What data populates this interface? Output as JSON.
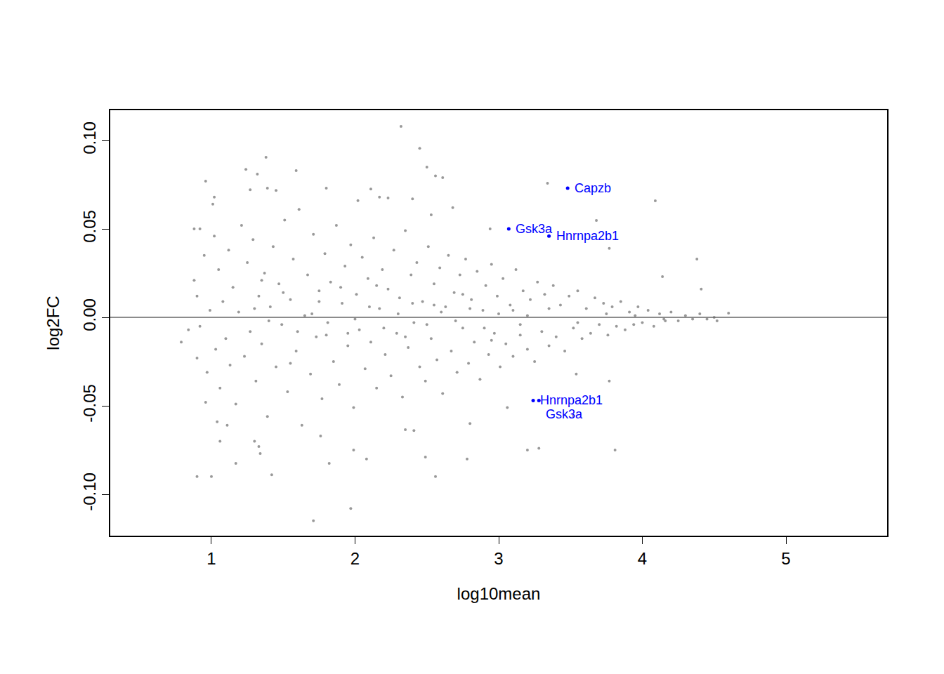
{
  "chart_data": {
    "type": "scatter",
    "x_label": "log10mean",
    "y_label": "log2FC",
    "xlim": [
      0.296,
      5.704
    ],
    "ylim": [
      -0.1234,
      0.1171
    ],
    "xticks": [
      1,
      2,
      3,
      4,
      5
    ],
    "yticks": [
      {
        "value": -0.1,
        "label": "-0.10"
      },
      {
        "value": -0.05,
        "label": "-0.05"
      },
      {
        "value": 0,
        "label": "0.00"
      },
      {
        "value": 0.05,
        "label": "0.05"
      },
      {
        "value": 0.1,
        "label": "0.10"
      }
    ],
    "grid": false,
    "reference_line": {
      "y": 0,
      "color": "#666666"
    },
    "series": [
      {
        "color": "#999999",
        "marker": "circle",
        "points": [
          [
            2.32,
            0.108
          ],
          [
            2.45,
            0.0956
          ],
          [
            1.38,
            0.0905
          ],
          [
            1.24,
            0.0837
          ],
          [
            1.32,
            0.081
          ],
          [
            1.59,
            0.083
          ],
          [
            0.96,
            0.077
          ],
          [
            3.34,
            0.0758
          ],
          [
            4.09,
            0.0659
          ],
          [
            2.5,
            0.085
          ],
          [
            2.56,
            0.08
          ],
          [
            2.61,
            0.079
          ],
          [
            1.27,
            0.0722
          ],
          [
            1.39,
            0.073
          ],
          [
            1.45,
            0.0718
          ],
          [
            1.8,
            0.073
          ],
          [
            2.11,
            0.0726
          ],
          [
            2.17,
            0.068
          ],
          [
            2.23,
            0.0675
          ],
          [
            2.4,
            0.067
          ],
          [
            1.02,
            0.068
          ],
          [
            1.01,
            0.064
          ],
          [
            3.68,
            0.0548
          ],
          [
            3.77,
            0.039
          ],
          [
            4.38,
            0.033
          ],
          [
            4.14,
            0.023
          ],
          [
            4.41,
            0.016
          ],
          [
            0.88,
            0.05
          ],
          [
            0.92,
            0.05
          ],
          [
            2.94,
            0.05
          ],
          [
            2.68,
            0.062
          ],
          [
            2.53,
            0.058
          ],
          [
            2.02,
            0.066
          ],
          [
            1.71,
            -0.115
          ],
          [
            1.97,
            -0.108
          ],
          [
            0.9,
            -0.09
          ],
          [
            1.0,
            -0.09
          ],
          [
            2.56,
            -0.09
          ],
          [
            1.42,
            -0.089
          ],
          [
            2.49,
            -0.079
          ],
          [
            2.08,
            -0.08
          ],
          [
            1.99,
            -0.075
          ],
          [
            2.78,
            -0.08
          ],
          [
            3.2,
            -0.075
          ],
          [
            3.28,
            -0.074
          ],
          [
            3.81,
            -0.075
          ],
          [
            1.17,
            -0.0825
          ],
          [
            1.3,
            -0.07
          ],
          [
            1.33,
            -0.073
          ],
          [
            1.34,
            -0.077
          ],
          [
            1.82,
            -0.0825
          ],
          [
            1.76,
            -0.067
          ],
          [
            2.35,
            -0.0635
          ],
          [
            2.41,
            -0.064
          ],
          [
            2.8,
            -0.06
          ],
          [
            3.52,
            -0.0556
          ],
          [
            3.54,
            -0.032
          ],
          [
            3.77,
            -0.036
          ],
          [
            3.06,
            -0.051
          ],
          [
            1.04,
            -0.059
          ],
          [
            1.06,
            -0.07
          ],
          [
            1.11,
            -0.061
          ],
          [
            0.79,
            -0.014
          ],
          [
            0.84,
            -0.007
          ],
          [
            0.9,
            -0.023
          ],
          [
            0.96,
            -0.048
          ],
          [
            4.6,
            0.0024
          ],
          [
            4.52,
            -0.002
          ],
          [
            0.88,
            0.021
          ],
          [
            0.9,
            0.012
          ],
          [
            0.92,
            -0.005
          ],
          [
            0.95,
            0.035
          ],
          [
            0.97,
            -0.031
          ],
          [
            0.99,
            0.004
          ],
          [
            1.02,
            0.046
          ],
          [
            1.03,
            -0.018
          ],
          [
            1.05,
            0.027
          ],
          [
            1.06,
            -0.04
          ],
          [
            1.08,
            0.009
          ],
          [
            1.1,
            -0.012
          ],
          [
            1.12,
            0.038
          ],
          [
            1.13,
            -0.027
          ],
          [
            1.15,
            0.017
          ],
          [
            1.17,
            -0.049
          ],
          [
            1.19,
            0.003
          ],
          [
            1.21,
            0.052
          ],
          [
            1.23,
            -0.022
          ],
          [
            1.25,
            0.031
          ],
          [
            1.27,
            -0.008
          ],
          [
            1.29,
            0.044
          ],
          [
            1.31,
            -0.036
          ],
          [
            1.33,
            0.012
          ],
          [
            1.35,
            -0.015
          ],
          [
            1.37,
            0.025
          ],
          [
            1.39,
            -0.056
          ],
          [
            1.41,
            0.006
          ],
          [
            1.43,
            0.04
          ],
          [
            1.45,
            -0.028
          ],
          [
            1.47,
            0.019
          ],
          [
            1.49,
            -0.004
          ],
          [
            1.51,
            0.055
          ],
          [
            1.53,
            -0.042
          ],
          [
            1.55,
            0.01
          ],
          [
            1.57,
            0.033
          ],
          [
            1.59,
            -0.019
          ],
          [
            1.61,
            0.061
          ],
          [
            1.63,
            -0.061
          ],
          [
            1.65,
            0.001
          ],
          [
            1.67,
            0.024
          ],
          [
            1.69,
            -0.032
          ],
          [
            1.71,
            0.047
          ],
          [
            1.73,
            -0.011
          ],
          [
            1.75,
            0.015
          ],
          [
            1.77,
            -0.046
          ],
          [
            1.79,
            0.036
          ],
          [
            1.81,
            -0.003
          ],
          [
            1.83,
            0.02
          ],
          [
            1.85,
            -0.025
          ],
          [
            1.87,
            0.052
          ],
          [
            1.89,
            -0.038
          ],
          [
            1.91,
            0.008
          ],
          [
            1.93,
            0.029
          ],
          [
            1.95,
            -0.016
          ],
          [
            1.97,
            0.041
          ],
          [
            1.99,
            -0.051
          ],
          [
            2.01,
            0.013
          ],
          [
            2.03,
            -0.007
          ],
          [
            2.05,
            0.034
          ],
          [
            2.07,
            -0.029
          ],
          [
            2.09,
            0.022
          ],
          [
            2.11,
            -0.014
          ],
          [
            2.13,
            0.045
          ],
          [
            2.15,
            -0.04
          ],
          [
            2.17,
            0.005
          ],
          [
            2.19,
            0.027
          ],
          [
            2.21,
            -0.021
          ],
          [
            2.23,
            0.016
          ],
          [
            2.25,
            -0.033
          ],
          [
            2.27,
            0.038
          ],
          [
            2.29,
            -0.009
          ],
          [
            2.31,
            0.011
          ],
          [
            2.33,
            -0.045
          ],
          [
            2.35,
            0.049
          ],
          [
            2.37,
            -0.017
          ],
          [
            2.39,
            0.024
          ],
          [
            2.41,
            -0.003
          ],
          [
            2.43,
            0.031
          ],
          [
            2.45,
            -0.028
          ],
          [
            2.47,
            0.009
          ],
          [
            2.49,
            -0.036
          ],
          [
            2.51,
            0.04
          ],
          [
            2.53,
            -0.012
          ],
          [
            2.55,
            0.019
          ],
          [
            2.57,
            -0.024
          ],
          [
            2.59,
            0.028
          ],
          [
            2.61,
            -0.043
          ],
          [
            2.63,
            0.006
          ],
          [
            2.65,
            0.035
          ],
          [
            2.67,
            -0.019
          ],
          [
            2.69,
            0.014
          ],
          [
            2.71,
            -0.031
          ],
          [
            2.73,
            0.024
          ],
          [
            2.75,
            -0.006
          ],
          [
            2.77,
            0.033
          ],
          [
            2.79,
            -0.026
          ],
          [
            2.81,
            0.01
          ],
          [
            2.83,
            -0.014
          ],
          [
            2.85,
            0.026
          ],
          [
            2.87,
            -0.035
          ],
          [
            2.89,
            0.004
          ],
          [
            2.91,
            0.018
          ],
          [
            2.93,
            -0.021
          ],
          [
            2.95,
            0.03
          ],
          [
            2.97,
            -0.009
          ],
          [
            2.99,
            0.012
          ],
          [
            3.01,
            -0.028
          ],
          [
            3.03,
            0.022
          ],
          [
            3.05,
            -0.015
          ],
          [
            3.08,
            0.007
          ],
          [
            3.1,
            -0.022
          ],
          [
            3.12,
            0.027
          ],
          [
            3.15,
            -0.004
          ],
          [
            3.17,
            0.015
          ],
          [
            3.2,
            -0.018
          ],
          [
            3.22,
            0.01
          ],
          [
            3.25,
            -0.025
          ],
          [
            3.27,
            0.02
          ],
          [
            3.3,
            -0.008
          ],
          [
            3.32,
            0.013
          ],
          [
            3.35,
            -0.016
          ],
          [
            3.38,
            0.018
          ],
          [
            3.4,
            -0.011
          ],
          [
            3.43,
            0.007
          ],
          [
            3.46,
            -0.019
          ],
          [
            3.49,
            0.012
          ],
          [
            3.52,
            -0.006
          ],
          [
            3.55,
            0.015
          ],
          [
            3.58,
            -0.012
          ],
          [
            3.61,
            0.005
          ],
          [
            3.64,
            -0.009
          ],
          [
            3.67,
            0.011
          ],
          [
            3.7,
            -0.004
          ],
          [
            3.73,
            0.008
          ],
          [
            3.76,
            -0.01
          ],
          [
            3.79,
            0.006
          ],
          [
            3.82,
            -0.005
          ],
          [
            3.85,
            0.009
          ],
          [
            3.88,
            -0.007
          ],
          [
            3.91,
            0.003
          ],
          [
            3.94,
            -0.004
          ],
          [
            3.97,
            0.006
          ],
          [
            4.0,
            -0.003
          ],
          [
            4.04,
            0.004
          ],
          [
            4.08,
            -0.005
          ],
          [
            4.12,
            0.002
          ],
          [
            4.16,
            -0.002
          ],
          [
            4.2,
            0.003
          ],
          [
            4.25,
            -0.002
          ],
          [
            4.3,
            0.001
          ],
          [
            4.35,
            -0.001
          ],
          [
            4.4,
            0.002
          ],
          [
            4.45,
            -0.001
          ],
          [
            1.3,
            0.005
          ],
          [
            1.4,
            -0.002
          ],
          [
            1.5,
            0.014
          ],
          [
            1.6,
            -0.008
          ],
          [
            1.7,
            0.002
          ],
          [
            1.8,
            -0.01
          ],
          [
            1.9,
            0.017
          ],
          [
            2.0,
            -0.001
          ],
          [
            2.1,
            0.006
          ],
          [
            2.2,
            -0.006
          ],
          [
            2.3,
            0.002
          ],
          [
            2.4,
            0.008
          ],
          [
            2.5,
            -0.004
          ],
          [
            2.6,
            0.003
          ],
          [
            2.7,
            -0.002
          ],
          [
            2.8,
            0.005
          ],
          [
            2.9,
            -0.006
          ],
          [
            3.0,
            0.002
          ],
          [
            3.1,
            0.004
          ],
          [
            3.2,
            0.001
          ],
          [
            1.35,
            0.021
          ],
          [
            1.55,
            -0.026
          ],
          [
            1.75,
            0.009
          ],
          [
            1.95,
            -0.009
          ],
          [
            2.15,
            0.018
          ],
          [
            2.35,
            -0.011
          ],
          [
            2.55,
            0.007
          ],
          [
            2.75,
            0.013
          ],
          [
            2.95,
            -0.013
          ],
          [
            3.15,
            -0.01
          ],
          [
            3.35,
            0.005
          ],
          [
            3.55,
            -0.003
          ],
          [
            3.75,
            0.002
          ],
          [
            3.95,
            0.001
          ],
          [
            4.15,
            -0.001
          ],
          [
            4.5,
            0
          ]
        ]
      },
      {
        "color": "#0000FF",
        "marker": "circle",
        "points": [
          [
            3.48,
            0.073
          ],
          [
            3.07,
            0.05
          ],
          [
            3.35,
            0.046
          ],
          [
            3.24,
            -0.047
          ],
          [
            3.28,
            -0.047
          ]
        ],
        "point_labels": [
          "Capzb",
          "Gsk3a",
          "Hnrnpa2b1",
          "Hnrnpa2b1",
          "Gsk3a"
        ]
      }
    ]
  }
}
